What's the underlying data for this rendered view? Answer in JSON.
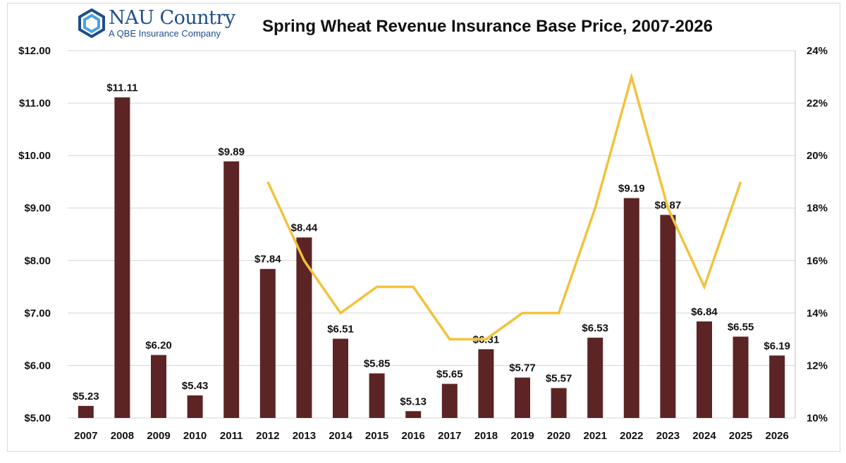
{
  "logo": {
    "name": "NAU Country",
    "subtitle": "A QBE Insurance Company"
  },
  "colors": {
    "bar": "#5c2424",
    "line": "#f2c23c",
    "grid": "#d4d4d4",
    "logo": "#1f4e8a"
  },
  "chart_data": {
    "type": "bar",
    "title": "Spring Wheat Revenue Insurance Base Price, 2007-2026",
    "categories": [
      "2007",
      "2008",
      "2009",
      "2010",
      "2011",
      "2012",
      "2013",
      "2014",
      "2015",
      "2016",
      "2017",
      "2018",
      "2019",
      "2020",
      "2021",
      "2022",
      "2023",
      "2024",
      "2025",
      "2026"
    ],
    "series": [
      {
        "type": "bar",
        "axis": "left",
        "values": [
          5.23,
          11.11,
          6.2,
          5.43,
          9.89,
          7.84,
          8.44,
          6.51,
          5.85,
          5.13,
          5.65,
          6.31,
          5.77,
          5.57,
          6.53,
          9.19,
          8.87,
          6.84,
          6.55,
          6.19
        ]
      },
      {
        "type": "line",
        "axis": "right",
        "values": [
          null,
          null,
          null,
          null,
          null,
          19,
          16,
          14,
          15,
          15,
          13,
          13,
          14,
          14,
          18,
          23,
          18,
          15,
          19,
          null
        ]
      }
    ],
    "data_labels": [
      "$5.23",
      "$11.11",
      "$6.20",
      "$5.43",
      "$9.89",
      "$7.84",
      "$8.44",
      "$6.51",
      "$5.85",
      "$5.13",
      "$5.65",
      "$6.31",
      "$5.77",
      "$5.57",
      "$6.53",
      "$9.19",
      "$8.87",
      "$6.84",
      "$6.55",
      "$6.19"
    ],
    "y_left": {
      "min": 5,
      "max": 12,
      "ticks": [
        "$5.00",
        "$6.00",
        "$7.00",
        "$8.00",
        "$9.00",
        "$10.00",
        "$11.00",
        "$12.00"
      ]
    },
    "y_right": {
      "min": 10,
      "max": 24,
      "ticks": [
        "10%",
        "12%",
        "14%",
        "16%",
        "18%",
        "20%",
        "22%",
        "24%"
      ]
    },
    "grid": true
  }
}
